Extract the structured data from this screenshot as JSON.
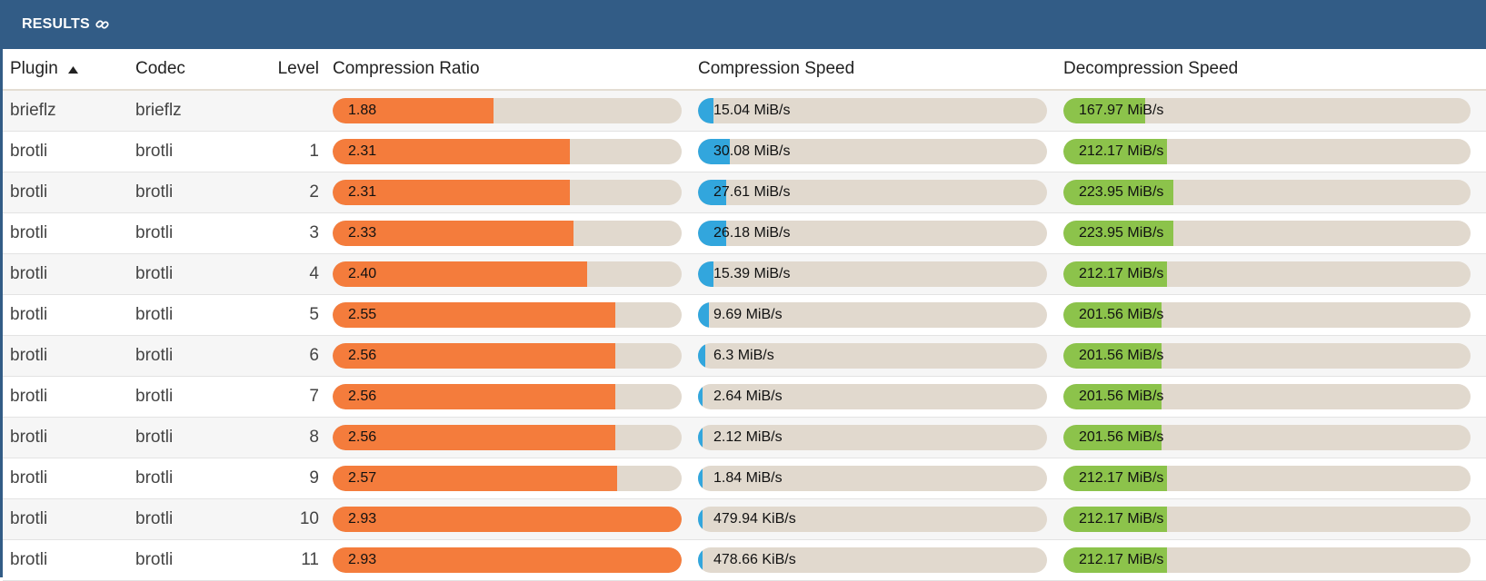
{
  "header": {
    "title": "RESULTS"
  },
  "columns": {
    "plugin": "Plugin",
    "codec": "Codec",
    "level": "Level",
    "ratio": "Compression Ratio",
    "cspeed": "Compression Speed",
    "dspeed": "Decompression Speed"
  },
  "colors": {
    "header_bg": "#325c86",
    "ratio_bar": "#f47c3c",
    "cspeed_bar": "#32a6dd",
    "dspeed_bar": "#8cc34b",
    "track": "#e1d9ce"
  },
  "rows": [
    {
      "plugin": "brieflz",
      "codec": "brieflz",
      "level": "",
      "ratio": "1.88",
      "ratio_frac": 0.46,
      "cspeed": "15.04 MiB/s",
      "cspeed_frac": 0.045,
      "dspeed": "167.97 MiB/s",
      "dspeed_frac": 0.2
    },
    {
      "plugin": "brotli",
      "codec": "brotli",
      "level": "1",
      "ratio": "2.31",
      "ratio_frac": 0.68,
      "cspeed": "30.08 MiB/s",
      "cspeed_frac": 0.09,
      "dspeed": "212.17 MiB/s",
      "dspeed_frac": 0.255
    },
    {
      "plugin": "brotli",
      "codec": "brotli",
      "level": "2",
      "ratio": "2.31",
      "ratio_frac": 0.68,
      "cspeed": "27.61 MiB/s",
      "cspeed_frac": 0.08,
      "dspeed": "223.95 MiB/s",
      "dspeed_frac": 0.27
    },
    {
      "plugin": "brotli",
      "codec": "brotli",
      "level": "3",
      "ratio": "2.33",
      "ratio_frac": 0.69,
      "cspeed": "26.18 MiB/s",
      "cspeed_frac": 0.08,
      "dspeed": "223.95 MiB/s",
      "dspeed_frac": 0.27
    },
    {
      "plugin": "brotli",
      "codec": "brotli",
      "level": "4",
      "ratio": "2.40",
      "ratio_frac": 0.73,
      "cspeed": "15.39 MiB/s",
      "cspeed_frac": 0.045,
      "dspeed": "212.17 MiB/s",
      "dspeed_frac": 0.255
    },
    {
      "plugin": "brotli",
      "codec": "brotli",
      "level": "5",
      "ratio": "2.55",
      "ratio_frac": 0.81,
      "cspeed": "9.69 MiB/s",
      "cspeed_frac": 0.03,
      "dspeed": "201.56 MiB/s",
      "dspeed_frac": 0.24
    },
    {
      "plugin": "brotli",
      "codec": "brotli",
      "level": "6",
      "ratio": "2.56",
      "ratio_frac": 0.81,
      "cspeed": "6.3 MiB/s",
      "cspeed_frac": 0.02,
      "dspeed": "201.56 MiB/s",
      "dspeed_frac": 0.24
    },
    {
      "plugin": "brotli",
      "codec": "brotli",
      "level": "7",
      "ratio": "2.56",
      "ratio_frac": 0.81,
      "cspeed": "2.64 MiB/s",
      "cspeed_frac": 0.008,
      "dspeed": "201.56 MiB/s",
      "dspeed_frac": 0.24
    },
    {
      "plugin": "brotli",
      "codec": "brotli",
      "level": "8",
      "ratio": "2.56",
      "ratio_frac": 0.81,
      "cspeed": "2.12 MiB/s",
      "cspeed_frac": 0.007,
      "dspeed": "201.56 MiB/s",
      "dspeed_frac": 0.24
    },
    {
      "plugin": "brotli",
      "codec": "brotli",
      "level": "9",
      "ratio": "2.57",
      "ratio_frac": 0.815,
      "cspeed": "1.84 MiB/s",
      "cspeed_frac": 0.006,
      "dspeed": "212.17 MiB/s",
      "dspeed_frac": 0.255
    },
    {
      "plugin": "brotli",
      "codec": "brotli",
      "level": "10",
      "ratio": "2.93",
      "ratio_frac": 1.0,
      "cspeed": "479.94 KiB/s",
      "cspeed_frac": 0.0015,
      "dspeed": "212.17 MiB/s",
      "dspeed_frac": 0.255
    },
    {
      "plugin": "brotli",
      "codec": "brotli",
      "level": "11",
      "ratio": "2.93",
      "ratio_frac": 1.0,
      "cspeed": "478.66 KiB/s",
      "cspeed_frac": 0.0015,
      "dspeed": "212.17 MiB/s",
      "dspeed_frac": 0.255
    }
  ]
}
